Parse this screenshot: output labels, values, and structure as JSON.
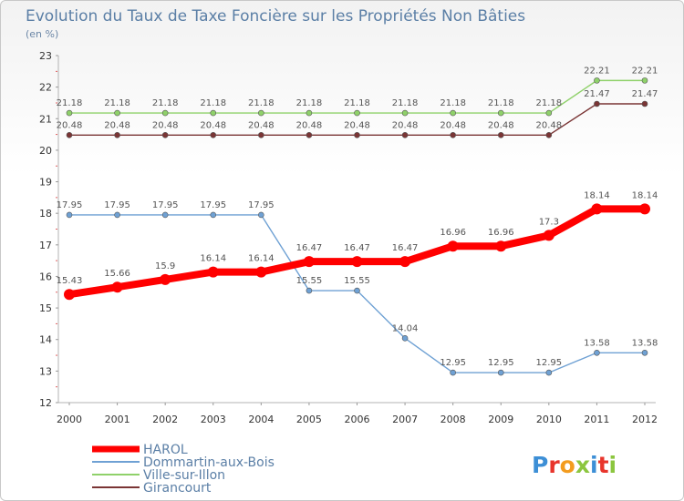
{
  "chart_data": {
    "type": "line",
    "title": "Evolution du Taux de Taxe Foncière sur les Propriétés Non Bâties",
    "unit_label": "(en %)",
    "xlabel": "",
    "ylabel": "",
    "categories": [
      "2000",
      "2001",
      "2002",
      "2003",
      "2004",
      "2005",
      "2006",
      "2007",
      "2008",
      "2009",
      "2010",
      "2011",
      "2012"
    ],
    "ylim": [
      12,
      23
    ],
    "yticks": [
      12,
      13,
      14,
      15,
      16,
      17,
      18,
      19,
      20,
      21,
      22,
      23
    ],
    "grid": false,
    "legend_position": "bottom-left",
    "series": [
      {
        "name": "HAROL",
        "color": "#ff0000",
        "values": [
          15.43,
          15.66,
          15.9,
          16.14,
          16.14,
          16.47,
          16.47,
          16.47,
          16.96,
          16.96,
          17.3,
          18.14,
          18.14
        ],
        "labels": [
          "15.43",
          "15.66",
          "15.9",
          "16.14",
          "16.14",
          "16.47",
          "16.47",
          "16.47",
          "16.96",
          "16.96",
          "17.3",
          "18.14",
          "18.14"
        ]
      },
      {
        "name": "Dommartin-aux-Bois",
        "color": "#6fa1d4",
        "values": [
          17.95,
          17.95,
          17.95,
          17.95,
          17.95,
          15.55,
          15.55,
          14.04,
          12.95,
          12.95,
          12.95,
          13.58,
          13.58
        ],
        "labels": [
          "17.95",
          "17.95",
          "17.95",
          "17.95",
          "17.95",
          "15.55",
          "15.55",
          "14.04",
          "12.95",
          "12.95",
          "12.95",
          "13.58",
          "13.58"
        ]
      },
      {
        "name": "Ville-sur-Illon",
        "color": "#8fd16a",
        "values": [
          21.18,
          21.18,
          21.18,
          21.18,
          21.18,
          21.18,
          21.18,
          21.18,
          21.18,
          21.18,
          21.18,
          22.21,
          22.21
        ],
        "labels": [
          "21.18",
          "21.18",
          "21.18",
          "21.18",
          "21.18",
          "21.18",
          "21.18",
          "21.18",
          "21.18",
          "21.18",
          "21.18",
          "22.21",
          "22.21"
        ]
      },
      {
        "name": "Girancourt",
        "color": "#7a3535",
        "values": [
          20.48,
          20.48,
          20.48,
          20.48,
          20.48,
          20.48,
          20.48,
          20.48,
          20.48,
          20.48,
          20.48,
          21.47,
          21.47
        ],
        "labels": [
          "20.48",
          "20.48",
          "20.48",
          "20.48",
          "20.48",
          "20.48",
          "20.48",
          "20.48",
          "20.48",
          "20.48",
          "20.48",
          "21.47",
          "21.47"
        ]
      }
    ]
  },
  "logo": {
    "text": "Proxiti",
    "colors": [
      "#3d8fd6",
      "#e8352c",
      "#f39c1f",
      "#8cc63f",
      "#3d8fd6",
      "#e8352c",
      "#8cc63f"
    ]
  }
}
